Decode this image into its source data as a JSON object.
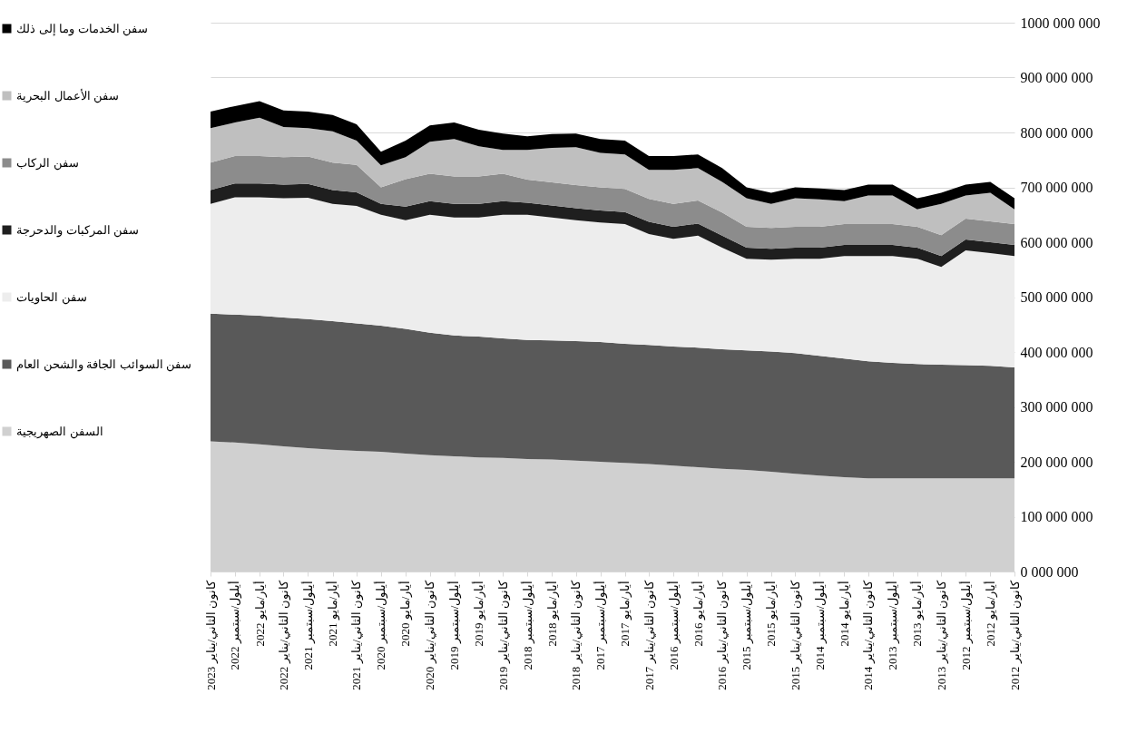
{
  "chart_data": {
    "type": "area",
    "stacked": true,
    "x": [
      "2012-01",
      "2012-05",
      "2012-09",
      "2013-01",
      "2013-05",
      "2013-09",
      "2014-01",
      "2014-05",
      "2014-09",
      "2015-01",
      "2015-05",
      "2015-09",
      "2016-01",
      "2016-05",
      "2016-09",
      "2017-01",
      "2017-05",
      "2017-09",
      "2018-01",
      "2018-05",
      "2018-09",
      "2019-01",
      "2019-05",
      "2019-09",
      "2020-01",
      "2020-05",
      "2020-09",
      "2021-01",
      "2021-05",
      "2021-09",
      "2022-01",
      "2022-05",
      "2022-09",
      "2023-01"
    ],
    "xlim": [
      "2023-01",
      "2012-01"
    ],
    "xticks": [
      {
        "value": "2012-01",
        "label": "كانون الثاني/يناير 2012"
      },
      {
        "value": "2012-05",
        "label": "أيار/مايو 2012"
      },
      {
        "value": "2012-09",
        "label": "أيلول/سبتمبر 2012"
      },
      {
        "value": "2013-01",
        "label": "كانون الثاني/يناير 2013"
      },
      {
        "value": "2013-05",
        "label": "أيار/مايو 2013"
      },
      {
        "value": "2013-09",
        "label": "أيلول/سبتمبر 2013"
      },
      {
        "value": "2014-01",
        "label": "كانون الثاني/يناير 2014"
      },
      {
        "value": "2014-05",
        "label": "أيار/مايو 2014"
      },
      {
        "value": "2014-09",
        "label": "أيلول/سبتمبر 2014"
      },
      {
        "value": "2015-01",
        "label": "كانون الثاني/يناير 2015"
      },
      {
        "value": "2015-05",
        "label": "أيار/مايو 2015"
      },
      {
        "value": "2015-09",
        "label": "أيلول/سبتمبر 2015"
      },
      {
        "value": "2016-01",
        "label": "كانون الثاني/يناير 2016"
      },
      {
        "value": "2016-05",
        "label": "أيار/مايو 2016"
      },
      {
        "value": "2016-09",
        "label": "أيلول/سبتمبر 2016"
      },
      {
        "value": "2017-01",
        "label": "كانون الثاني/يناير 2017"
      },
      {
        "value": "2017-05",
        "label": "أيار/مايو 2017"
      },
      {
        "value": "2017-09",
        "label": "أيلول/سبتمبر 2017"
      },
      {
        "value": "2018-01",
        "label": "كانون الثاني/يناير 2018"
      },
      {
        "value": "2018-05",
        "label": "أيار/مايو 2018"
      },
      {
        "value": "2018-09",
        "label": "أيلول/سبتمبر 2018"
      },
      {
        "value": "2019-01",
        "label": "كانون الثاني/يناير 2019"
      },
      {
        "value": "2019-05",
        "label": "أيار/مايو 2019"
      },
      {
        "value": "2019-09",
        "label": "أيلول/سبتمبر 2019"
      },
      {
        "value": "2020-01",
        "label": "كانون الثاني/يناير 2020"
      },
      {
        "value": "2020-05",
        "label": "أيار/مايو 2020"
      },
      {
        "value": "2020-09",
        "label": "أيلول/سبتمبر 2020"
      },
      {
        "value": "2021-01",
        "label": "كانون الثاني/يناير 2021"
      },
      {
        "value": "2021-05",
        "label": "أيار/مايو 2021"
      },
      {
        "value": "2021-09",
        "label": "أيلول/سبتمبر 2021"
      },
      {
        "value": "2022-01",
        "label": "كانون الثاني/يناير 2022"
      },
      {
        "value": "2022-05",
        "label": "أيار/مايو 2022"
      },
      {
        "value": "2022-09",
        "label": "أيلول/سبتمبر 2022"
      },
      {
        "value": "2023-01",
        "label": "كانون الثاني/يناير 2023"
      }
    ],
    "ylim": [
      0,
      1000000000
    ],
    "yticks": [
      {
        "value": 0,
        "label": "0 000 000"
      },
      {
        "value": 100000000,
        "label": "100 000 000"
      },
      {
        "value": 200000000,
        "label": "200 000 000"
      },
      {
        "value": 300000000,
        "label": "300 000 000"
      },
      {
        "value": 400000000,
        "label": "400 000 000"
      },
      {
        "value": 500000000,
        "label": "500 000 000"
      },
      {
        "value": 600000000,
        "label": "600 000 000"
      },
      {
        "value": 700000000,
        "label": "700 000 000"
      },
      {
        "value": 800000000,
        "label": "800 000 000"
      },
      {
        "value": 900000000,
        "label": "900 000 000"
      },
      {
        "value": 1000000000,
        "label": "1000 000 000"
      }
    ],
    "grid": "y",
    "legend": "left",
    "series": [
      {
        "name": "السفن الصهريجية",
        "color": "#d0d0d0",
        "values": [
          170000000,
          170000000,
          170000000,
          170000000,
          170000000,
          170000000,
          170000000,
          172000000,
          175000000,
          178000000,
          182000000,
          185000000,
          187000000,
          190000000,
          193000000,
          196000000,
          198000000,
          200000000,
          202000000,
          204000000,
          205000000,
          207000000,
          208000000,
          210000000,
          212000000,
          215000000,
          218000000,
          220000000,
          222000000,
          225000000,
          228000000,
          232000000,
          235000000,
          237000000
        ]
      },
      {
        "name": "سفن السوائب الجافة والشحن العام",
        "color": "#595959",
        "values": [
          202000000,
          205000000,
          206000000,
          207000000,
          208000000,
          210000000,
          213000000,
          216000000,
          218000000,
          220000000,
          219000000,
          218000000,
          218000000,
          218000000,
          217000000,
          217000000,
          217000000,
          218000000,
          218000000,
          217000000,
          217000000,
          218000000,
          220000000,
          220000000,
          223000000,
          227000000,
          230000000,
          232000000,
          234000000,
          235000000,
          235000000,
          234000000,
          233000000,
          233000000
        ]
      },
      {
        "name": "سفن الحاويات",
        "color": "#ededed",
        "values": [
          203000000,
          205000000,
          209000000,
          178000000,
          192000000,
          195000000,
          192000000,
          187000000,
          177000000,
          172000000,
          167000000,
          167000000,
          185000000,
          204000000,
          196000000,
          202000000,
          218000000,
          218000000,
          220000000,
          224000000,
          228000000,
          225000000,
          217000000,
          215000000,
          215000000,
          198000000,
          202000000,
          214000000,
          214000000,
          221000000,
          217000000,
          216000000,
          214000000,
          200000000
        ]
      },
      {
        "name": "سفن المركبات والدحرجة",
        "color": "#1f1f1f",
        "values": [
          20000000,
          20000000,
          20000000,
          20000000,
          20000000,
          20000000,
          20000000,
          20000000,
          20000000,
          20000000,
          20000000,
          20000000,
          22000000,
          22000000,
          22000000,
          22000000,
          22000000,
          22000000,
          22000000,
          22000000,
          22000000,
          25000000,
          25000000,
          25000000,
          25000000,
          25000000,
          20000000,
          25000000,
          25000000,
          25000000,
          25000000,
          25000000,
          25000000,
          25000000
        ]
      },
      {
        "name": "سفن الركاب",
        "color": "#8c8c8c",
        "values": [
          38000000,
          38000000,
          38000000,
          38000000,
          38000000,
          38000000,
          38000000,
          38000000,
          38000000,
          38000000,
          38000000,
          38000000,
          42000000,
          42000000,
          42000000,
          42000000,
          42000000,
          42000000,
          42000000,
          42000000,
          42000000,
          50000000,
          50000000,
          50000000,
          50000000,
          50000000,
          30000000,
          50000000,
          50000000,
          50000000,
          50000000,
          50000000,
          50000000,
          50000000
        ]
      },
      {
        "name": "سفن الأعمال البحرية",
        "color": "#bfbfbf",
        "values": [
          27000000,
          52000000,
          42000000,
          57000000,
          32000000,
          52000000,
          52000000,
          42000000,
          50000000,
          52000000,
          44000000,
          52000000,
          56000000,
          59000000,
          62000000,
          53000000,
          63000000,
          63000000,
          69000000,
          63000000,
          54000000,
          43000000,
          55000000,
          68000000,
          58000000,
          40000000,
          40000000,
          44000000,
          57000000,
          52000000,
          55000000,
          70000000,
          61000000,
          63000000
        ]
      },
      {
        "name": "سفن الخدمات وما إلى ذلك",
        "color": "#000000",
        "values": [
          20000000,
          20000000,
          20000000,
          20000000,
          20000000,
          20000000,
          20000000,
          20000000,
          20000000,
          20000000,
          20000000,
          20000000,
          25000000,
          25000000,
          25000000,
          25000000,
          25000000,
          25000000,
          25000000,
          25000000,
          25000000,
          30000000,
          30000000,
          30000000,
          30000000,
          30000000,
          25000000,
          30000000,
          30000000,
          30000000,
          30000000,
          30000000,
          30000000,
          30000000
        ]
      }
    ]
  }
}
